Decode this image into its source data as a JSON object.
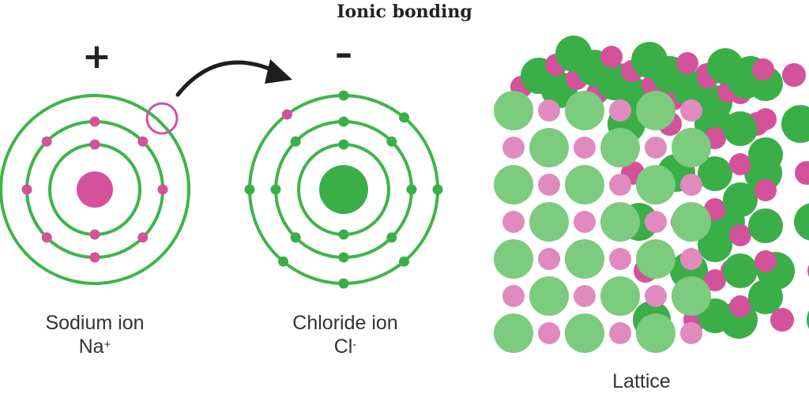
{
  "title": "Ionic bonding",
  "charges": {
    "positive": "+",
    "negative": "–"
  },
  "sodium": {
    "name": "Sodium ion",
    "symbol": "Na",
    "charge_sup": "+"
  },
  "chloride": {
    "name": "Chloride ion",
    "symbol": "Cl",
    "charge_sup": "-"
  },
  "lattice": {
    "label": "Lattice"
  },
  "colors": {
    "shell": "#3db54a",
    "sodium": "#d4519c",
    "chlorine": "#3aae47",
    "sodium_light": "#e08abf",
    "chlorine_light": "#7ccb7e",
    "arrow": "#1e1e1e"
  }
}
